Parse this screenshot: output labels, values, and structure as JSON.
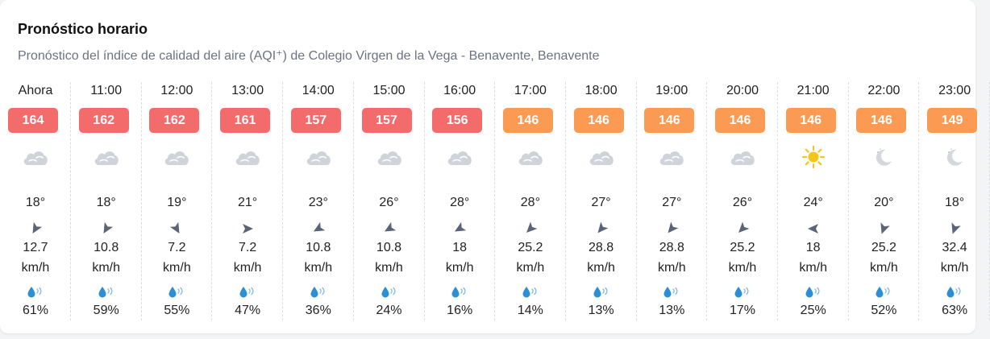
{
  "header": {
    "title": "Pronóstico horario",
    "subtitle": "Pronóstico del índice de calidad del aire (AQI⁺) de Colegio Virgen de la Vega - Benavente, Benavente"
  },
  "colors": {
    "aqi_red": "#f46b6b",
    "aqi_orange": "#fb9a53",
    "cloud": "#cfd4db",
    "sun": "#f5c518",
    "arrow": "#5b6477",
    "drop": "#2b8fd6"
  },
  "hours": [
    {
      "time": "Ahora",
      "aqi": "164",
      "aqi_level": "red",
      "weather": "cloud-icon",
      "temp": "18°",
      "wind_dir_deg": 210,
      "wind_speed": "12.7",
      "wind_unit": "km/h",
      "rain": "61%"
    },
    {
      "time": "11:00",
      "aqi": "162",
      "aqi_level": "red",
      "weather": "cloud-icon",
      "temp": "18°",
      "wind_dir_deg": 210,
      "wind_speed": "10.8",
      "wind_unit": "km/h",
      "rain": "59%"
    },
    {
      "time": "12:00",
      "aqi": "162",
      "aqi_level": "red",
      "weather": "cloud-icon",
      "temp": "19°",
      "wind_dir_deg": 150,
      "wind_speed": "7.2",
      "wind_unit": "km/h",
      "rain": "55%"
    },
    {
      "time": "13:00",
      "aqi": "161",
      "aqi_level": "red",
      "weather": "cloud-icon",
      "temp": "21°",
      "wind_dir_deg": 90,
      "wind_speed": "7.2",
      "wind_unit": "km/h",
      "rain": "47%"
    },
    {
      "time": "14:00",
      "aqi": "157",
      "aqi_level": "red",
      "weather": "cloud-icon",
      "temp": "23°",
      "wind_dir_deg": 240,
      "wind_speed": "10.8",
      "wind_unit": "km/h",
      "rain": "36%"
    },
    {
      "time": "15:00",
      "aqi": "157",
      "aqi_level": "red",
      "weather": "cloud-icon",
      "temp": "26°",
      "wind_dir_deg": 240,
      "wind_speed": "10.8",
      "wind_unit": "km/h",
      "rain": "24%"
    },
    {
      "time": "16:00",
      "aqi": "156",
      "aqi_level": "red",
      "weather": "cloud-icon",
      "temp": "28°",
      "wind_dir_deg": 240,
      "wind_speed": "18",
      "wind_unit": "km/h",
      "rain": "16%"
    },
    {
      "time": "17:00",
      "aqi": "146",
      "aqi_level": "orange",
      "weather": "cloud-icon",
      "temp": "28°",
      "wind_dir_deg": 225,
      "wind_speed": "25.2",
      "wind_unit": "km/h",
      "rain": "14%"
    },
    {
      "time": "18:00",
      "aqi": "146",
      "aqi_level": "orange",
      "weather": "cloud-icon",
      "temp": "27°",
      "wind_dir_deg": 220,
      "wind_speed": "28.8",
      "wind_unit": "km/h",
      "rain": "13%"
    },
    {
      "time": "19:00",
      "aqi": "146",
      "aqi_level": "orange",
      "weather": "cloud-icon",
      "temp": "27°",
      "wind_dir_deg": 220,
      "wind_speed": "28.8",
      "wind_unit": "km/h",
      "rain": "13%"
    },
    {
      "time": "20:00",
      "aqi": "146",
      "aqi_level": "orange",
      "weather": "cloud-icon",
      "temp": "26°",
      "wind_dir_deg": 225,
      "wind_speed": "25.2",
      "wind_unit": "km/h",
      "rain": "17%"
    },
    {
      "time": "21:00",
      "aqi": "146",
      "aqi_level": "orange",
      "weather": "sun-icon",
      "temp": "24°",
      "wind_dir_deg": 270,
      "wind_speed": "18",
      "wind_unit": "km/h",
      "rain": "25%"
    },
    {
      "time": "22:00",
      "aqi": "146",
      "aqi_level": "orange",
      "weather": "moon-icon",
      "temp": "20°",
      "wind_dir_deg": 200,
      "wind_speed": "25.2",
      "wind_unit": "km/h",
      "rain": "52%"
    },
    {
      "time": "23:00",
      "aqi": "149",
      "aqi_level": "orange",
      "weather": "moon-icon",
      "temp": "18°",
      "wind_dir_deg": 200,
      "wind_speed": "32.4",
      "wind_unit": "km/h",
      "rain": "63%"
    }
  ]
}
